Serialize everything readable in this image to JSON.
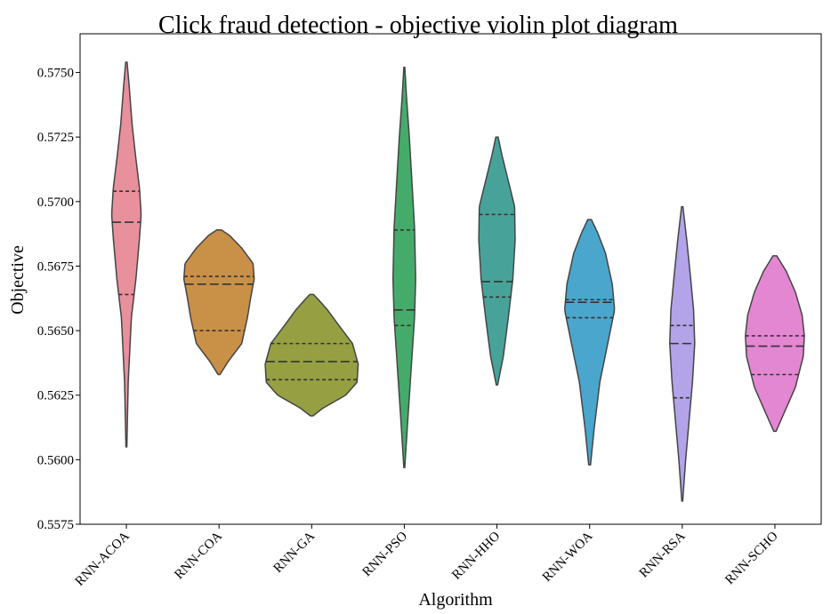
{
  "chart_data": {
    "type": "violin",
    "title": "Click fraud detection -  objective violin plot diagram",
    "xlabel": "Algorithm",
    "ylabel": "Objective",
    "ylim": [
      0.5575,
      0.5765
    ],
    "yticks": [
      0.5575,
      0.56,
      0.5625,
      0.565,
      0.5675,
      0.57,
      0.5725,
      0.575
    ],
    "ytick_labels": [
      "0.5575",
      "0.5600",
      "0.5625",
      "0.5650",
      "0.5675",
      "0.5700",
      "0.5725",
      "0.5750"
    ],
    "grid": false,
    "inner": "quartile",
    "categories": [
      "RNN-ACOA",
      "RNN-COA",
      "RNN-GA",
      "RNN-PSO",
      "RNN-HHO",
      "RNN-WOA",
      "RNN-RSA",
      "RNN-SCHO"
    ],
    "colors": [
      "#e8909b",
      "#c99048",
      "#96a043",
      "#45ab6a",
      "#47a39a",
      "#4aa6cc",
      "#b3a3e8",
      "#e487d2"
    ],
    "series": [
      {
        "min": 0.5605,
        "q1": 0.5664,
        "median": 0.5692,
        "q3": 0.5704,
        "max": 0.5754,
        "profile": [
          [
            0.5605,
            0.2
          ],
          [
            0.563,
            0.8
          ],
          [
            0.5655,
            2.2
          ],
          [
            0.567,
            4.2
          ],
          [
            0.5685,
            5.7
          ],
          [
            0.5695,
            6.5
          ],
          [
            0.5705,
            5.8
          ],
          [
            0.5718,
            4.0
          ],
          [
            0.573,
            2.5
          ],
          [
            0.5745,
            1.2
          ],
          [
            0.5754,
            0.3
          ]
        ]
      },
      {
        "min": 0.5633,
        "q1": 0.565,
        "median": 0.5668,
        "q3": 0.5671,
        "max": 0.5689,
        "profile": [
          [
            0.5633,
            0.4
          ],
          [
            0.5638,
            4.0
          ],
          [
            0.5645,
            10.0
          ],
          [
            0.5655,
            12.5
          ],
          [
            0.5663,
            14.0
          ],
          [
            0.567,
            15.5
          ],
          [
            0.5676,
            15.0
          ],
          [
            0.5682,
            10.0
          ],
          [
            0.5687,
            4.5
          ],
          [
            0.5689,
            1.0
          ]
        ]
      },
      {
        "min": 0.5617,
        "q1": 0.5631,
        "median": 0.5638,
        "q3": 0.5645,
        "max": 0.5664,
        "profile": [
          [
            0.5617,
            0.6
          ],
          [
            0.562,
            5.0
          ],
          [
            0.5625,
            15.0
          ],
          [
            0.563,
            20.0
          ],
          [
            0.5637,
            20.5
          ],
          [
            0.5645,
            18.0
          ],
          [
            0.5652,
            12.0
          ],
          [
            0.5658,
            7.0
          ],
          [
            0.5662,
            3.0
          ],
          [
            0.5664,
            0.8
          ]
        ]
      },
      {
        "min": 0.5597,
        "q1": 0.5652,
        "median": 0.5658,
        "q3": 0.5689,
        "max": 0.5752,
        "profile": [
          [
            0.5597,
            0.2
          ],
          [
            0.5615,
            1.5
          ],
          [
            0.5635,
            3.0
          ],
          [
            0.5655,
            4.5
          ],
          [
            0.567,
            5.0
          ],
          [
            0.569,
            4.5
          ],
          [
            0.571,
            3.2
          ],
          [
            0.5725,
            2.2
          ],
          [
            0.574,
            1.0
          ],
          [
            0.5752,
            0.2
          ]
        ]
      },
      {
        "min": 0.5629,
        "q1": 0.5663,
        "median": 0.5669,
        "q3": 0.5695,
        "max": 0.5725,
        "profile": [
          [
            0.5629,
            0.3
          ],
          [
            0.564,
            2.8
          ],
          [
            0.5655,
            5.0
          ],
          [
            0.567,
            7.0
          ],
          [
            0.5685,
            8.0
          ],
          [
            0.5698,
            7.8
          ],
          [
            0.5708,
            5.0
          ],
          [
            0.5718,
            2.2
          ],
          [
            0.5725,
            0.5
          ]
        ]
      },
      {
        "min": 0.5598,
        "q1": 0.5655,
        "median": 0.5661,
        "q3": 0.5662,
        "max": 0.5693,
        "profile": [
          [
            0.5598,
            0.4
          ],
          [
            0.5612,
            2.0
          ],
          [
            0.563,
            4.5
          ],
          [
            0.5645,
            8.0
          ],
          [
            0.5658,
            11.0
          ],
          [
            0.5668,
            10.0
          ],
          [
            0.568,
            7.0
          ],
          [
            0.5688,
            3.5
          ],
          [
            0.5693,
            0.8
          ]
        ]
      },
      {
        "min": 0.5584,
        "q1": 0.5624,
        "median": 0.5645,
        "q3": 0.5652,
        "max": 0.5698,
        "profile": [
          [
            0.5584,
            0.2
          ],
          [
            0.56,
            1.5
          ],
          [
            0.5615,
            3.0
          ],
          [
            0.563,
            4.5
          ],
          [
            0.5645,
            5.5
          ],
          [
            0.5658,
            5.0
          ],
          [
            0.5672,
            3.5
          ],
          [
            0.5685,
            2.0
          ],
          [
            0.5698,
            0.3
          ]
        ]
      },
      {
        "min": 0.5611,
        "q1": 0.5633,
        "median": 0.5644,
        "q3": 0.5648,
        "max": 0.5679,
        "profile": [
          [
            0.5611,
            0.5
          ],
          [
            0.5618,
            4.0
          ],
          [
            0.5628,
            9.0
          ],
          [
            0.564,
            12.5
          ],
          [
            0.5648,
            13.0
          ],
          [
            0.5656,
            12.0
          ],
          [
            0.5665,
            9.0
          ],
          [
            0.5673,
            5.0
          ],
          [
            0.5679,
            0.8
          ]
        ]
      }
    ]
  }
}
